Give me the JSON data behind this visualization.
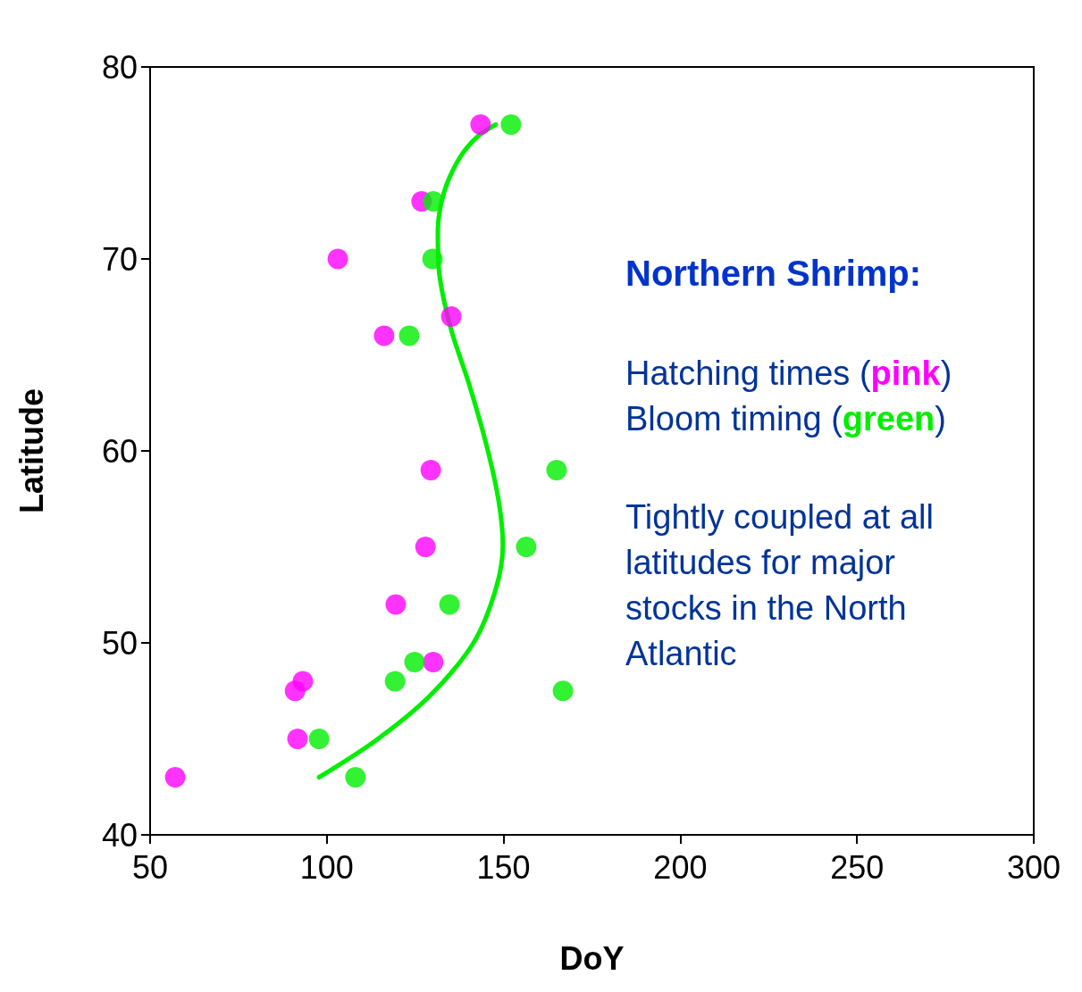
{
  "chart_data": {
    "type": "scatter",
    "xlabel": "DoY",
    "ylabel": "Latitude",
    "xlim": [
      50,
      300
    ],
    "xticks": [
      50,
      100,
      150,
      200,
      250,
      300
    ],
    "ylim": [
      40,
      80
    ],
    "yticks": [
      40,
      50,
      60,
      70,
      80
    ],
    "grid": false,
    "marker": "circle",
    "annotations": [
      "Northern Shrimp:",
      "Hatching times (pink)",
      "Bloom timing (green)",
      "Tightly coupled at all latitudes for major stocks in the North Atlantic"
    ],
    "series": [
      {
        "color": "#ff00ff",
        "x": [
          143.5,
          126.8,
          103.1,
          135.2,
          116.2,
          129.4,
          127.9,
          119.5,
          130.1,
          93.2,
          91,
          91.7,
          57.1
        ],
        "values": [
          77,
          73,
          70,
          67,
          66,
          59,
          55,
          52,
          49,
          48,
          47.5,
          45,
          43
        ]
      },
      {
        "color": "#00ee00",
        "x": [
          152.1,
          130.1,
          129.9,
          123.3,
          165,
          156.4,
          134.7,
          124.8,
          119.3,
          166.8,
          97.8,
          108.1
        ],
        "values": [
          77,
          73,
          70,
          66,
          59,
          55,
          52,
          49,
          48,
          47.5,
          45,
          43
        ]
      },
      {
        "type": "line",
        "color": "#00ee00",
        "marker": "none",
        "line_style": "solid",
        "x": [
          97.8,
          113.7,
          128.9,
          141.5,
          147.8,
          149.8,
          148.6,
          145.3,
          140.2,
          135.2,
          131.9,
          131.4,
          133.2,
          137.7,
          142.8,
          147.8
        ],
        "values": [
          43,
          44.9,
          47.2,
          50,
          52.8,
          55.1,
          57.4,
          60.2,
          63.5,
          66.3,
          69.1,
          71.4,
          73.5,
          75.3,
          76.4,
          77
        ]
      }
    ]
  }
}
